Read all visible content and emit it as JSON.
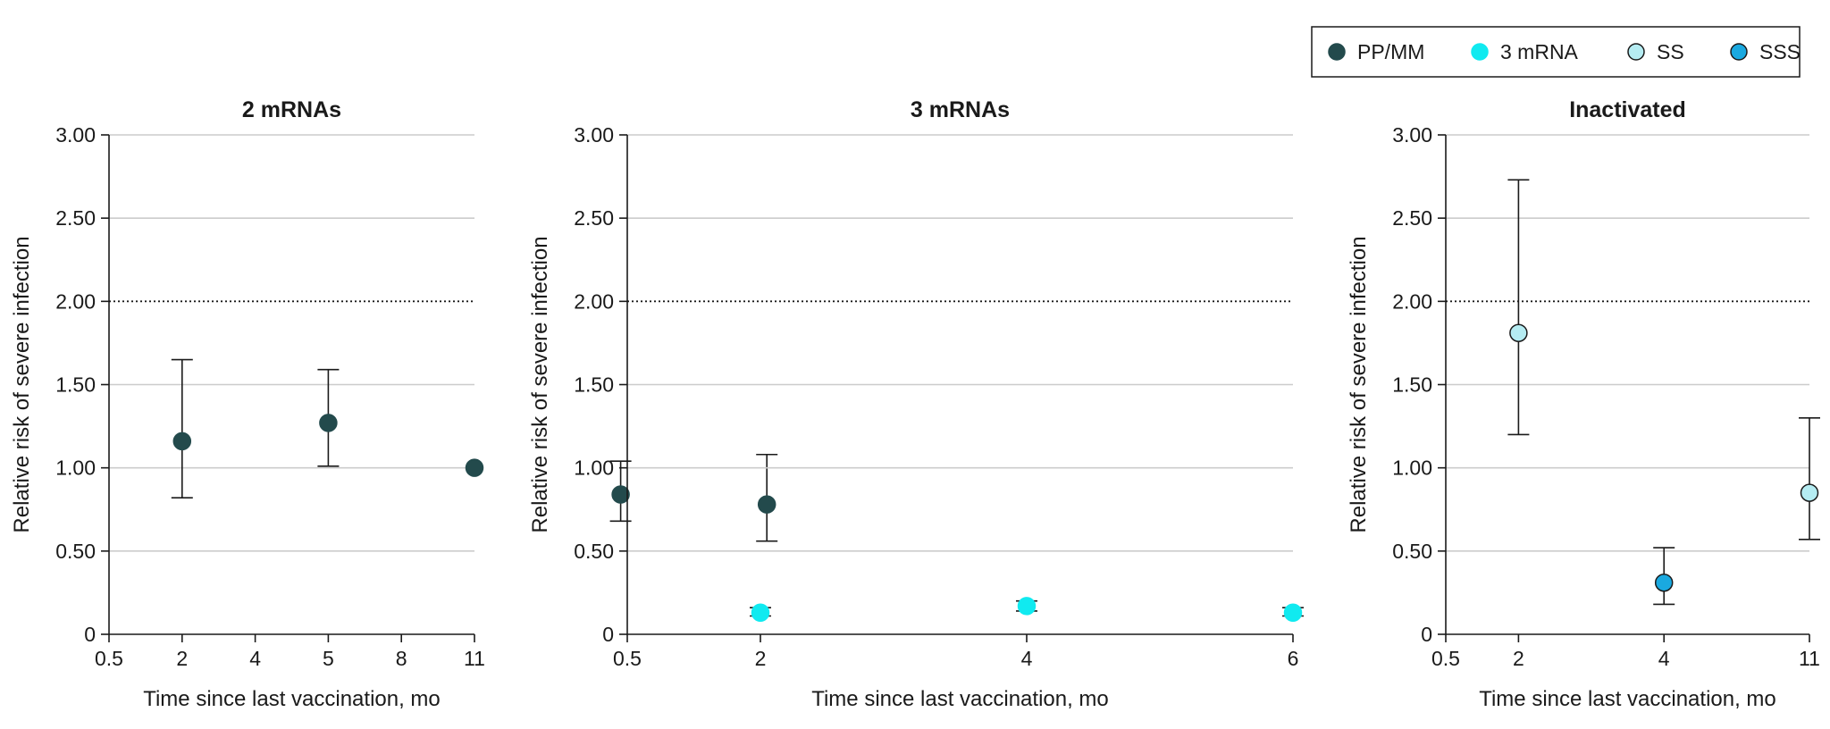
{
  "legend": [
    {
      "label": "PP/MM",
      "fill": "#234a4c",
      "stroke": "#234a4c"
    },
    {
      "label": "3 mRNA",
      "fill": "#10eaf0",
      "stroke": "#10eaf0"
    },
    {
      "label": "SS",
      "fill": "#b5ecf2",
      "stroke": "#1a1a1a"
    },
    {
      "label": "SSS",
      "fill": "#1aa9e0",
      "stroke": "#1a1a1a"
    }
  ],
  "colors": {
    "gridline": "#cccccc",
    "axis": "#1a1a1a",
    "reference_line": "#1a1a1a",
    "error_bar": "#1a1a1a"
  },
  "chart_data": [
    {
      "type": "scatter",
      "title": "2 mRNAs",
      "xlabel": "Time since last vaccination, mo",
      "ylabel": "Relative risk of severe infection",
      "x_tick_labels": [
        "0.5",
        "2",
        "4",
        "5",
        "8",
        "11"
      ],
      "y_tick_labels": [
        "0",
        "0.50",
        "1.00",
        "1.50",
        "2.00",
        "2.50",
        "3.00"
      ],
      "ylim": [
        0,
        3
      ],
      "reference_line": 2.0,
      "grid": true,
      "points": [
        {
          "x_pos": 1,
          "y": 1.16,
          "lo": 0.82,
          "hi": 1.65,
          "series": "PP/MM"
        },
        {
          "x_pos": 3,
          "y": 1.27,
          "lo": 1.01,
          "hi": 1.59,
          "series": "PP/MM"
        },
        {
          "x_pos": 5,
          "y": 1.0,
          "series": "PP/MM"
        },
        {
          "x_pos": 7,
          "y": 0.84,
          "lo": 0.68,
          "hi": 1.04,
          "series": "PP/MM"
        },
        {
          "x_pos": 9,
          "y": 0.78,
          "lo": 0.56,
          "hi": 1.08,
          "series": "PP/MM"
        }
      ]
    },
    {
      "type": "scatter",
      "title": "3 mRNAs",
      "xlabel": "Time since last vaccination, mo",
      "ylabel": "Relative risk of severe infection",
      "x_tick_labels": [
        "0.5",
        "2",
        "4",
        "6"
      ],
      "y_tick_labels": [
        "0",
        "0.50",
        "1.00",
        "1.50",
        "2.00",
        "2.50",
        "3.00"
      ],
      "ylim": [
        0,
        3
      ],
      "reference_line": 2.0,
      "grid": true,
      "points": [
        {
          "x_pos": 1,
          "y": 0.13,
          "lo": 0.11,
          "hi": 0.16,
          "series": "3 mRNA"
        },
        {
          "x_pos": 3,
          "y": 0.17,
          "lo": 0.14,
          "hi": 0.2,
          "series": "3 mRNA"
        },
        {
          "x_pos": 5,
          "y": 0.13,
          "lo": 0.11,
          "hi": 0.16,
          "series": "3 mRNA"
        }
      ]
    },
    {
      "type": "scatter",
      "title": "Inactivated",
      "xlabel": "Time since last vaccination, mo",
      "ylabel": "Relative risk of severe infection",
      "x_tick_labels": [
        "0.5",
        "2",
        "4",
        "11"
      ],
      "y_tick_labels": [
        "0",
        "0.50",
        "1.00",
        "1.50",
        "2.00",
        "2.50",
        "3.00"
      ],
      "ylim": [
        0,
        3
      ],
      "reference_line": 2.0,
      "grid": true,
      "points": [
        {
          "x_pos": 1,
          "y": 1.81,
          "lo": 1.2,
          "hi": 2.73,
          "series": "SS"
        },
        {
          "x_pos": 3,
          "y": 0.31,
          "lo": 0.18,
          "hi": 0.52,
          "series": "SSS"
        },
        {
          "x_pos": 5,
          "y": 0.85,
          "lo": 0.57,
          "hi": 1.3,
          "series": "SS"
        }
      ]
    }
  ]
}
